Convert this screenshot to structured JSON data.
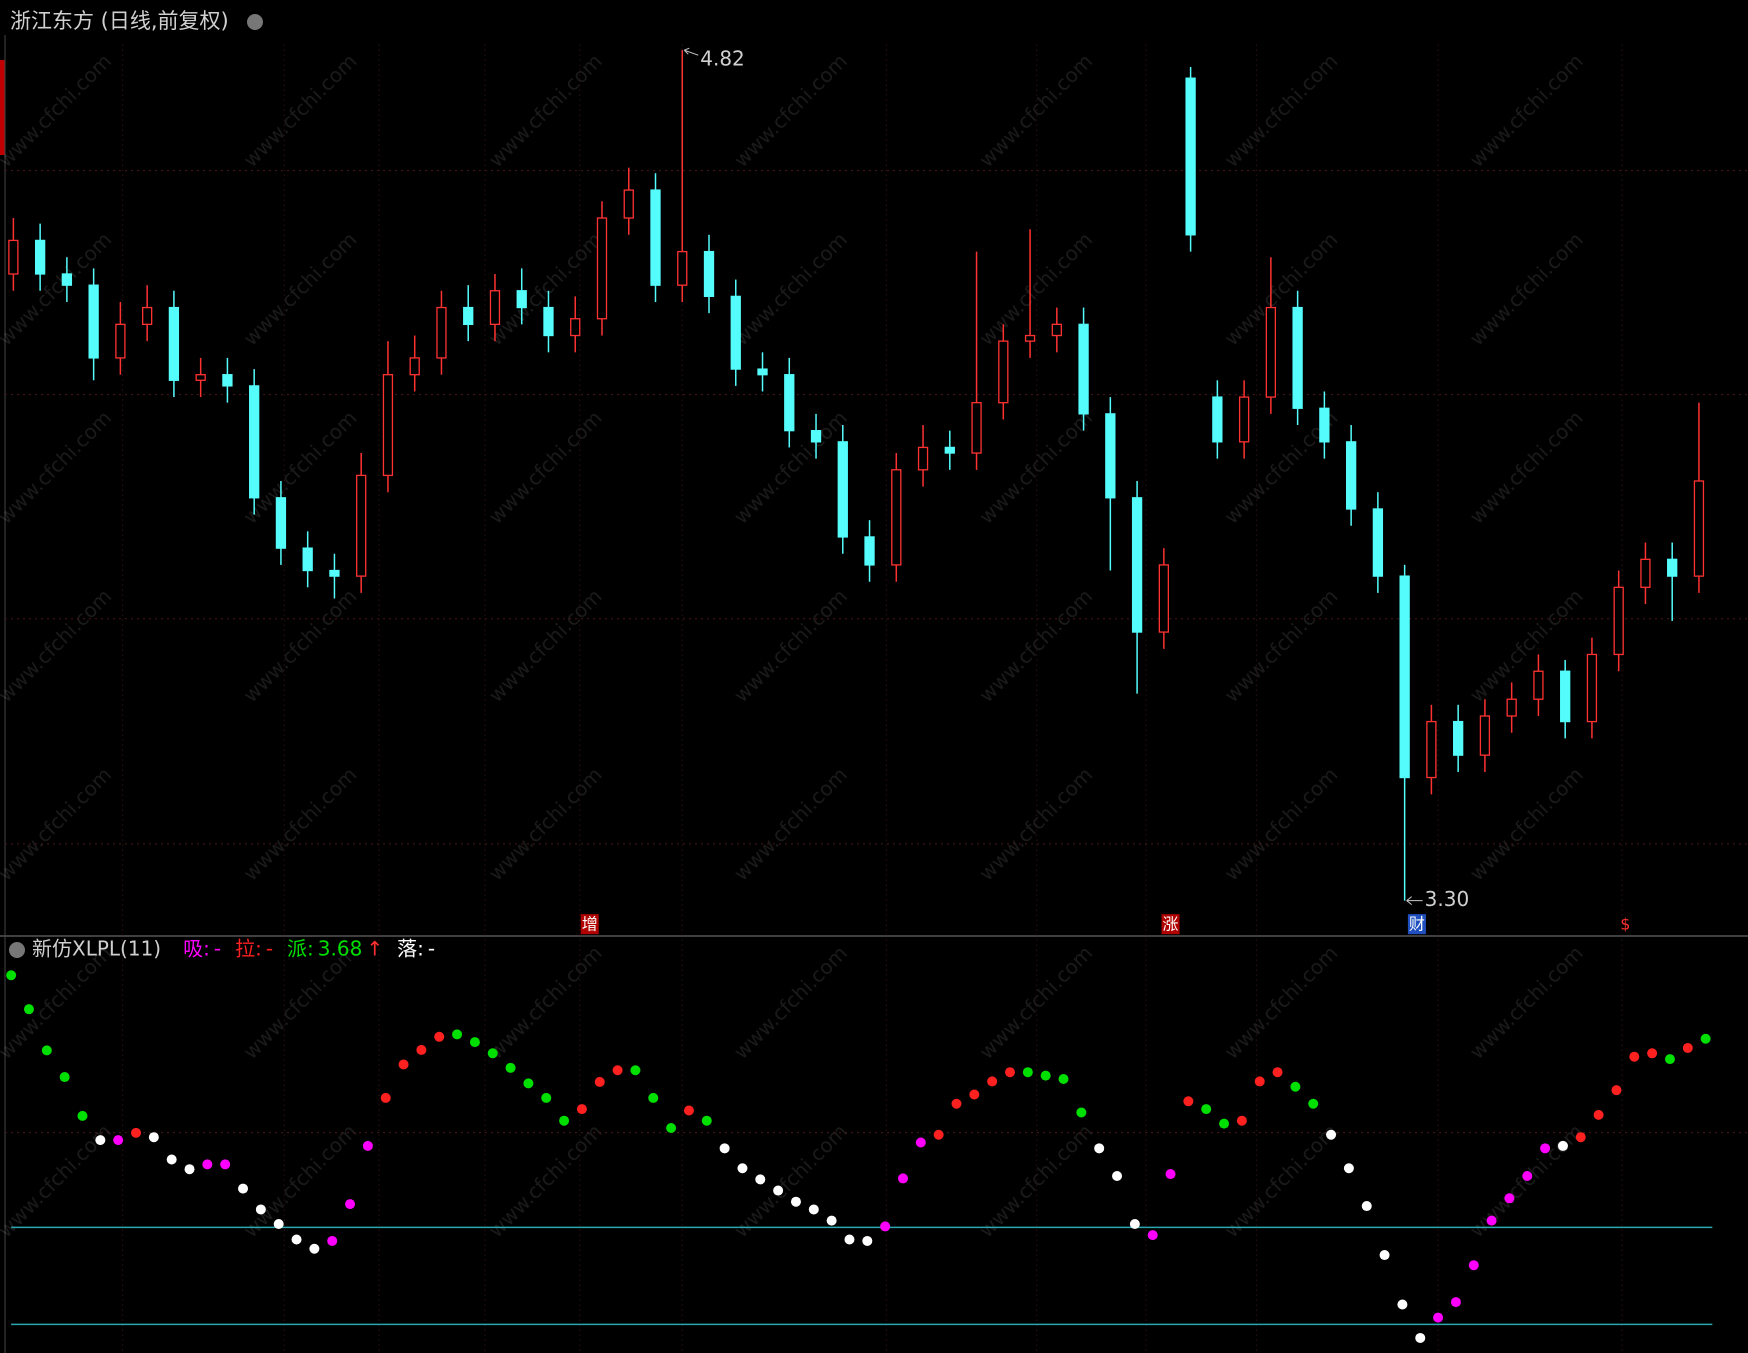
{
  "header": {
    "title": "浙江东方 (日线,前复权)"
  },
  "watermark": "www.cfchi.com",
  "chart_data": [
    {
      "type": "candlestick",
      "open": [
        4.42,
        4.48,
        4.42,
        4.4,
        4.27,
        4.33,
        4.36,
        4.23,
        4.24,
        4.22,
        4.02,
        3.93,
        3.89,
        3.88,
        4.06,
        4.24,
        4.27,
        4.36,
        4.33,
        4.39,
        4.36,
        4.31,
        4.34,
        4.52,
        4.57,
        4.4,
        4.46,
        4.38,
        4.25,
        4.24,
        4.14,
        4.12,
        3.95,
        3.9,
        4.07,
        4.11,
        4.1,
        4.19,
        4.3,
        4.31,
        4.33,
        4.17,
        4.02,
        3.78,
        4.77,
        4.2,
        4.12,
        4.2,
        4.36,
        4.18,
        4.12,
        4.0,
        3.88,
        3.52,
        3.62,
        3.56,
        3.63,
        3.66,
        3.71,
        3.62,
        3.74,
        3.86,
        3.91,
        3.88
      ],
      "high": [
        4.52,
        4.51,
        4.45,
        4.43,
        4.37,
        4.4,
        4.39,
        4.27,
        4.27,
        4.25,
        4.05,
        3.96,
        3.92,
        4.1,
        4.3,
        4.31,
        4.39,
        4.4,
        4.42,
        4.43,
        4.39,
        4.38,
        4.55,
        4.61,
        4.6,
        4.82,
        4.49,
        4.41,
        4.28,
        4.27,
        4.17,
        4.15,
        3.98,
        4.1,
        4.15,
        4.14,
        4.46,
        4.33,
        4.5,
        4.36,
        4.36,
        4.2,
        4.05,
        3.93,
        4.79,
        4.23,
        4.23,
        4.45,
        4.39,
        4.21,
        4.15,
        4.03,
        3.9,
        3.65,
        3.65,
        3.66,
        3.69,
        3.74,
        3.73,
        3.77,
        3.89,
        3.94,
        3.94,
        4.19
      ],
      "low": [
        4.39,
        4.39,
        4.37,
        4.23,
        4.24,
        4.3,
        4.2,
        4.2,
        4.19,
        3.99,
        3.9,
        3.86,
        3.84,
        3.85,
        4.03,
        4.21,
        4.24,
        4.3,
        4.3,
        4.33,
        4.28,
        4.28,
        4.31,
        4.49,
        4.37,
        4.37,
        4.35,
        4.22,
        4.21,
        4.11,
        4.09,
        3.92,
        3.87,
        3.87,
        4.04,
        4.07,
        4.07,
        4.16,
        4.27,
        4.28,
        4.14,
        3.89,
        3.67,
        3.75,
        4.46,
        4.09,
        4.09,
        4.17,
        4.15,
        4.09,
        3.97,
        3.85,
        3.3,
        3.49,
        3.53,
        3.53,
        3.6,
        3.63,
        3.59,
        3.59,
        3.71,
        3.83,
        3.8,
        3.85
      ],
      "close": [
        4.48,
        4.42,
        4.4,
        4.27,
        4.33,
        4.36,
        4.23,
        4.24,
        4.22,
        4.02,
        3.93,
        3.89,
        3.88,
        4.06,
        4.24,
        4.27,
        4.36,
        4.33,
        4.39,
        4.36,
        4.31,
        4.34,
        4.52,
        4.57,
        4.4,
        4.46,
        4.38,
        4.25,
        4.24,
        4.14,
        4.12,
        3.95,
        3.9,
        4.07,
        4.11,
        4.1,
        4.19,
        4.3,
        4.31,
        4.33,
        4.17,
        4.02,
        3.78,
        3.9,
        4.49,
        4.12,
        4.2,
        4.36,
        4.18,
        4.12,
        4.0,
        3.88,
        3.52,
        3.62,
        3.56,
        3.63,
        3.66,
        3.71,
        3.62,
        3.74,
        3.86,
        3.91,
        3.88,
        4.05
      ],
      "ylim": [
        3.24,
        4.83
      ],
      "up_color": "#ff3232",
      "down_color": "#54fcfc",
      "high_label": "4.82",
      "low_label": "3.30",
      "events": [
        "增",
        "涨",
        "财",
        "$"
      ]
    },
    {
      "type": "dots",
      "title": "新仿XLPL(11)",
      "legend": [
        {
          "name": "吸:",
          "value": "-",
          "color": "#ff00ff"
        },
        {
          "name": "拉:",
          "value": "-",
          "color": "#ff2020"
        },
        {
          "name": "派:",
          "value": 3.68,
          "suffix": "↑",
          "color": "#00e000"
        },
        {
          "name": "落:",
          "value": "-",
          "color": "#ffffff"
        }
      ],
      "values": [
        72,
        65,
        56.5,
        51,
        43,
        38,
        38,
        39.5,
        38.6,
        34,
        32,
        33,
        33,
        28,
        23.7,
        20.7,
        17.5,
        15.6,
        17.2,
        24.8,
        36.8,
        46.7,
        53.6,
        56.6,
        59.3,
        59.8,
        58.2,
        55.9,
        52.9,
        49.7,
        46.7,
        42,
        44.4,
        50,
        52.4,
        52.4,
        46.7,
        40.5,
        44.1,
        42,
        36.3,
        32.2,
        29.9,
        27.6,
        25.3,
        23.7,
        21.4,
        17.5,
        17.2,
        20.2,
        30.1,
        37.5,
        39.1,
        45.5,
        47.4,
        50.1,
        52,
        52,
        51.3,
        50.6,
        43.7,
        36.3,
        30.6,
        20.7,
        18.4,
        31,
        46,
        44.4,
        41.4,
        42,
        50.1,
        52,
        49,
        45.5,
        39.1,
        32.2,
        24.4,
        14.3,
        4.1,
        -2.8,
        1.4,
        4.6,
        12.2,
        21.4,
        26,
        30.6,
        36.3,
        36.8,
        38.6,
        43.2,
        48.3,
        55.2,
        55.9,
        54.7,
        57,
        58.9
      ],
      "point_colors": [
        "#00e000",
        "#00e000",
        "#00e000",
        "#00e000",
        "#00e000",
        "#ffffff",
        "#ff00ff",
        "#ff2020",
        "#ffffff",
        "#ffffff",
        "#ffffff",
        "#ff00ff",
        "#ff00ff",
        "#ffffff",
        "#ffffff",
        "#ffffff",
        "#ffffff",
        "#ffffff",
        "#ff00ff",
        "#ff00ff",
        "#ff00ff",
        "#ff2020",
        "#ff2020",
        "#ff2020",
        "#ff2020",
        "#00e000",
        "#00e000",
        "#00e000",
        "#00e000",
        "#00e000",
        "#00e000",
        "#00e000",
        "#ff2020",
        "#ff2020",
        "#ff2020",
        "#00e000",
        "#00e000",
        "#00e000",
        "#ff2020",
        "#00e000",
        "#ffffff",
        "#ffffff",
        "#ffffff",
        "#ffffff",
        "#ffffff",
        "#ffffff",
        "#ffffff",
        "#ffffff",
        "#ffffff",
        "#ff00ff",
        "#ff00ff",
        "#ff00ff",
        "#ff2020",
        "#ff2020",
        "#ff2020",
        "#ff2020",
        "#ff2020",
        "#00e000",
        "#00e000",
        "#00e000",
        "#00e000",
        "#ffffff",
        "#ffffff",
        "#ffffff",
        "#ff00ff",
        "#ff00ff",
        "#ff2020",
        "#00e000",
        "#00e000",
        "#ff2020",
        "#ff2020",
        "#ff2020",
        "#00e000",
        "#00e000",
        "#ffffff",
        "#ffffff",
        "#ffffff",
        "#ffffff",
        "#ffffff",
        "#ffffff",
        "#ff00ff",
        "#ff00ff",
        "#ff00ff",
        "#ff00ff",
        "#ff00ff",
        "#ff00ff",
        "#ff00ff",
        "#ffffff",
        "#ff2020",
        "#ff2020",
        "#ff2020",
        "#ff2020",
        "#ff2020",
        "#00e000",
        "#ff2020",
        "#00e000"
      ],
      "ylim": [
        -5,
        75
      ],
      "hlines": [
        20,
        0
      ],
      "hline_color": "#2aa8b0"
    }
  ]
}
